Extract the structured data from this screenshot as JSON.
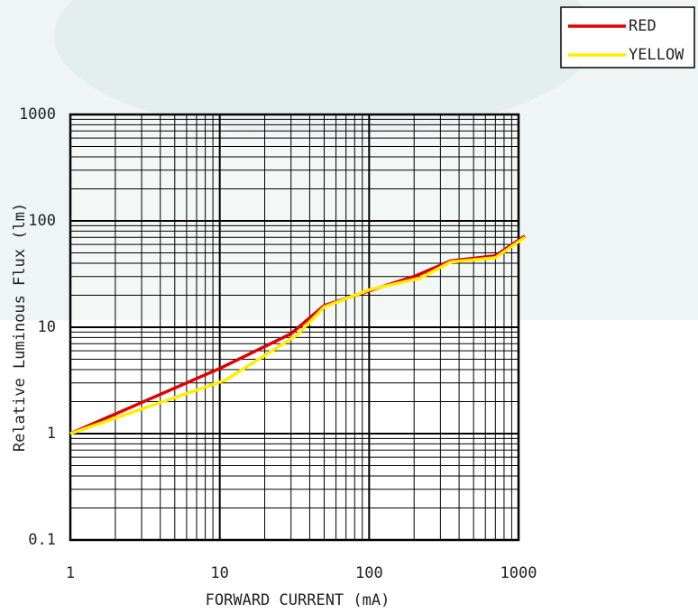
{
  "chart_data": {
    "type": "line",
    "x_label": "FORWARD CURRENT (mA)",
    "y_label": "Relative Luminous Flux (lm)",
    "log_x": true,
    "log_y": true,
    "grid": true,
    "minor_grid": true,
    "legend": "top-right",
    "xlim": [
      1,
      1000
    ],
    "xticks": [
      1,
      10,
      100,
      1000
    ],
    "ylim": [
      0.1,
      1000
    ],
    "yticks": [
      0.1,
      1,
      10,
      100,
      1000
    ],
    "series": [
      {
        "name": "RED",
        "color": "#e00000",
        "x": [
          1,
          10,
          30,
          50,
          100,
          200,
          350,
          700,
          1100
        ],
        "values": [
          1,
          4.1,
          8.7,
          16,
          22,
          30,
          42,
          47,
          72
        ]
      },
      {
        "name": "YELLOW",
        "color": "#ffee00",
        "x": [
          1,
          11,
          33,
          50,
          100,
          220,
          350,
          700,
          1100
        ],
        "values": [
          1,
          3.2,
          8.5,
          15.5,
          22.5,
          29,
          41,
          45,
          70
        ]
      }
    ]
  }
}
